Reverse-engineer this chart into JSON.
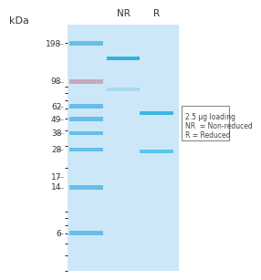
{
  "fig_bg": "#ffffff",
  "gel_bg": "#cce8f8",
  "kda_label": "kDa",
  "ladder_marks": [
    198,
    98,
    62,
    49,
    38,
    28,
    17,
    14,
    6
  ],
  "ladder_band_colors": [
    "#5ab8e8",
    "#c8a0b8",
    "#5ab8e8",
    "#5ab8e8",
    "#5ab8e8",
    "#5ab8e8",
    "#5ab8e8",
    "#5ab8e8",
    "#5ab8e8"
  ],
  "ladder_band_present": [
    true,
    true,
    true,
    true,
    true,
    true,
    false,
    true,
    true
  ],
  "col_labels": [
    "NR",
    "R"
  ],
  "nr_bands": [
    {
      "kda": 150,
      "color": "#2ab0e0",
      "alpha": 0.95
    },
    {
      "kda": 85,
      "color": "#5ab8e0",
      "alpha": 0.3
    }
  ],
  "r_bands": [
    {
      "kda": 55,
      "color": "#2ab0e0",
      "alpha": 0.88
    },
    {
      "kda": 27,
      "color": "#2ab8e8",
      "alpha": 0.7
    }
  ],
  "legend_text": [
    "2.5 μg loading",
    "NR  = Non-reduced",
    "R = Reduced"
  ],
  "ymin": 3,
  "ymax": 280
}
